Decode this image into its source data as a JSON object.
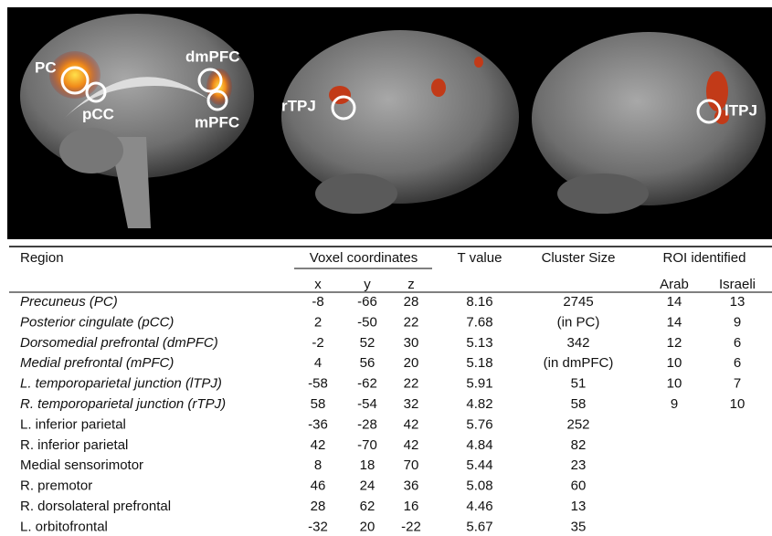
{
  "figure": {
    "labels": {
      "pc": "PC",
      "pcc": "pCC",
      "dmpfc": "dmPFC",
      "mpfc": "mPFC",
      "rtpj": "rTPJ",
      "ltpj": "lTPJ"
    }
  },
  "table": {
    "header": [
      "Region",
      "Voxel coordinates",
      "T value",
      "Cluster Size",
      "ROI identified"
    ],
    "subheader": [
      "x",
      "y",
      "z",
      "Arab",
      "Israeli"
    ],
    "rows": [
      [
        "Precuneus (PC)",
        -8,
        -66,
        28,
        8.16,
        2745,
        14,
        13
      ],
      [
        "Posterior cingulate (pCC)",
        2,
        -50,
        22,
        7.68,
        "(in PC)",
        14,
        9
      ],
      [
        "Dorsomedial prefrontal (dmPFC)",
        -2,
        52,
        30,
        5.13,
        342,
        12,
        6
      ],
      [
        "Medial prefrontal (mPFC)",
        4,
        56,
        20,
        5.18,
        "(in dmPFC)",
        10,
        6
      ],
      [
        "L. temporoparietal junction (lTPJ)",
        -58,
        -62,
        22,
        5.91,
        51,
        10,
        7
      ],
      [
        "R. temporoparietal junction (rTPJ)",
        58,
        -54,
        32,
        4.82,
        58,
        9,
        10
      ],
      [
        "L. inferior parietal",
        -36,
        -28,
        42,
        5.76,
        252
      ],
      [
        "R. inferior parietal",
        42,
        -70,
        42,
        4.84,
        82
      ],
      [
        "Medial sensorimotor",
        8,
        18,
        70,
        5.44,
        23
      ],
      [
        "R. premotor",
        46,
        24,
        36,
        5.08,
        60
      ],
      [
        "R. dorsolateral prefrontal",
        28,
        62,
        16,
        4.46,
        13
      ],
      [
        "L. orbitofrontal",
        -32,
        20,
        -22,
        5.67,
        35
      ]
    ]
  }
}
